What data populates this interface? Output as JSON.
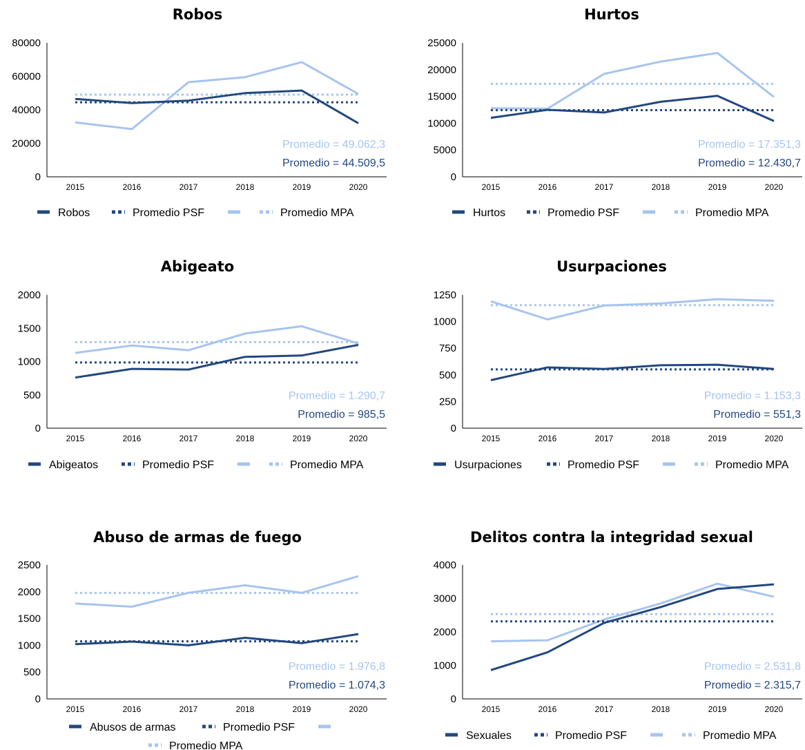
{
  "colors": {
    "dark": "#22477F",
    "light": "#A6C4F0",
    "axis": "#000000"
  },
  "chart_data": [
    {
      "type": "line",
      "title": "Robos",
      "x": [
        "2015",
        "2016",
        "2017",
        "2018",
        "2019",
        "2020"
      ],
      "ylim": [
        0,
        80000
      ],
      "yticks": [
        0,
        20000,
        40000,
        60000,
        80000
      ],
      "series": [
        {
          "name": "Robos",
          "style": "solid",
          "color": "dark",
          "values": [
            46500,
            44000,
            45500,
            50000,
            51500,
            32000
          ]
        },
        {
          "name": "Promedio PSF",
          "style": "dotted",
          "color": "dark",
          "values": [
            44509.5,
            44509.5,
            44509.5,
            44509.5,
            44509.5,
            44509.5
          ]
        },
        {
          "name": "",
          "style": "solid",
          "color": "light",
          "values": [
            32500,
            28500,
            56500,
            59500,
            68500,
            49500
          ]
        },
        {
          "name": "Promedio MPA",
          "style": "dotted",
          "color": "light",
          "values": [
            49062.3,
            49062.3,
            49062.3,
            49062.3,
            49062.3,
            49062.3
          ]
        }
      ],
      "annotations": [
        "Promedio = 49.062,3",
        "Promedio = 44.509,5"
      ]
    },
    {
      "type": "line",
      "title": "Hurtos",
      "x": [
        "2015",
        "2016",
        "2017",
        "2018",
        "2019",
        "2020"
      ],
      "ylim": [
        0,
        25000
      ],
      "yticks": [
        0,
        5000,
        10000,
        15000,
        20000,
        25000
      ],
      "series": [
        {
          "name": "Hurtos",
          "style": "solid",
          "color": "dark",
          "values": [
            11000,
            12500,
            12000,
            14000,
            15100,
            10400
          ]
        },
        {
          "name": "Promedio PSF",
          "style": "dotted",
          "color": "dark",
          "values": [
            12430.7,
            12430.7,
            12430.7,
            12430.7,
            12430.7,
            12430.7
          ]
        },
        {
          "name": "",
          "style": "solid",
          "color": "light",
          "values": [
            12800,
            12700,
            19200,
            21500,
            23100,
            14900
          ]
        },
        {
          "name": "Promedio MPA",
          "style": "dotted",
          "color": "light",
          "values": [
            17351.3,
            17351.3,
            17351.3,
            17351.3,
            17351.3,
            17351.3
          ]
        }
      ],
      "annotations": [
        "Promedio = 17.351,3",
        "Promedio = 12.430,7"
      ]
    },
    {
      "type": "line",
      "title": "Abigeato",
      "x": [
        "2015",
        "2016",
        "2017",
        "2018",
        "2019",
        "2020"
      ],
      "ylim": [
        0,
        2000
      ],
      "yticks": [
        0,
        500,
        1000,
        1500,
        2000
      ],
      "series": [
        {
          "name": "Abigeatos",
          "style": "solid",
          "color": "dark",
          "values": [
            760,
            890,
            880,
            1070,
            1090,
            1250
          ]
        },
        {
          "name": "Promedio PSF",
          "style": "dotted",
          "color": "dark",
          "values": [
            985.5,
            985.5,
            985.5,
            985.5,
            985.5,
            985.5
          ]
        },
        {
          "name": "",
          "style": "solid",
          "color": "light",
          "values": [
            1130,
            1240,
            1170,
            1420,
            1530,
            1270
          ]
        },
        {
          "name": "Promedio MPA",
          "style": "dotted",
          "color": "light",
          "values": [
            1290.7,
            1290.7,
            1290.7,
            1290.7,
            1290.7,
            1290.7
          ]
        }
      ],
      "annotations": [
        "Promedio = 1.290,7",
        "Promedio = 985,5"
      ]
    },
    {
      "type": "line",
      "title": "Usurpaciones",
      "x": [
        "2015",
        "2016",
        "2017",
        "2018",
        "2019",
        "2020"
      ],
      "ylim": [
        0,
        1250
      ],
      "yticks": [
        0,
        250,
        500,
        750,
        1000,
        1250
      ],
      "series": [
        {
          "name": "Usurpaciones",
          "style": "solid",
          "color": "dark",
          "values": [
            450,
            570,
            555,
            590,
            595,
            555
          ]
        },
        {
          "name": "Promedio PSF",
          "style": "dotted",
          "color": "dark",
          "values": [
            551.3,
            551.3,
            551.3,
            551.3,
            551.3,
            551.3
          ]
        },
        {
          "name": "",
          "style": "solid",
          "color": "light",
          "values": [
            1190,
            1020,
            1150,
            1170,
            1210,
            1195
          ]
        },
        {
          "name": "Promedio MPA",
          "style": "dotted",
          "color": "light",
          "values": [
            1153.3,
            1153.3,
            1153.3,
            1153.3,
            1153.3,
            1153.3
          ]
        }
      ],
      "annotations": [
        "Promedio = 1.153,3",
        "Promedio = 551,3"
      ]
    },
    {
      "type": "line",
      "title": "Abuso de armas de fuego",
      "x": [
        "2015",
        "2016",
        "2017",
        "2018",
        "2019",
        "2020"
      ],
      "ylim": [
        0,
        2500
      ],
      "yticks": [
        0,
        500,
        1000,
        1500,
        2000,
        2500
      ],
      "series": [
        {
          "name": "Abusos de armas",
          "style": "solid",
          "color": "dark",
          "values": [
            1020,
            1070,
            1000,
            1140,
            1040,
            1210
          ]
        },
        {
          "name": "Promedio PSF",
          "style": "dotted",
          "color": "dark",
          "values": [
            1074.3,
            1074.3,
            1074.3,
            1074.3,
            1074.3,
            1074.3
          ]
        },
        {
          "name": "",
          "style": "solid",
          "color": "light",
          "values": [
            1780,
            1720,
            1980,
            2120,
            1980,
            2290
          ]
        },
        {
          "name": "Promedio MPA",
          "style": "dotted",
          "color": "light",
          "values": [
            1976.8,
            1976.8,
            1976.8,
            1976.8,
            1976.8,
            1976.8
          ]
        }
      ],
      "annotations": [
        "Promedio = 1.976,8",
        "Promedio = 1.074,3"
      ]
    },
    {
      "type": "line",
      "title": "Delitos contra la integridad sexual",
      "x": [
        "2015",
        "2016",
        "2017",
        "2018",
        "2019",
        "2020"
      ],
      "ylim": [
        0,
        4000
      ],
      "yticks": [
        0,
        1000,
        2000,
        3000,
        4000
      ],
      "series": [
        {
          "name": "Sexuales",
          "style": "solid",
          "color": "dark",
          "values": [
            860,
            1390,
            2270,
            2740,
            3280,
            3420
          ]
        },
        {
          "name": "Promedio PSF",
          "style": "dotted",
          "color": "dark",
          "values": [
            2315.7,
            2315.7,
            2315.7,
            2315.7,
            2315.7,
            2315.7
          ]
        },
        {
          "name": "",
          "style": "solid",
          "color": "light",
          "values": [
            1720,
            1750,
            2370,
            2850,
            3440,
            3050
          ]
        },
        {
          "name": "Promedio MPA",
          "style": "dotted",
          "color": "light",
          "values": [
            2531.8,
            2531.8,
            2531.8,
            2531.8,
            2531.8,
            2531.8
          ]
        }
      ],
      "annotations": [
        "Promedio = 2.531,8",
        "Promedio = 2.315,7"
      ]
    }
  ]
}
